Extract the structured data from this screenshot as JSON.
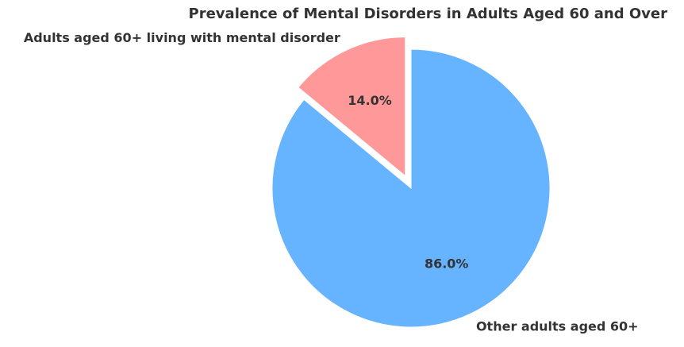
{
  "chart_data": {
    "type": "pie",
    "title": "Prevalence of Mental Disorders in Adults Aged 60 and Over",
    "slices": [
      {
        "label": "Adults aged 60+ living with mental disorder",
        "value": 14.0,
        "percent_label": "14.0%",
        "color": "#ff9999",
        "exploded": true
      },
      {
        "label": "Other adults aged 60+",
        "value": 86.0,
        "percent_label": "86.0%",
        "color": "#66b3ff",
        "exploded": false
      }
    ],
    "start_angle": 90,
    "direction": "counterclockwise"
  }
}
